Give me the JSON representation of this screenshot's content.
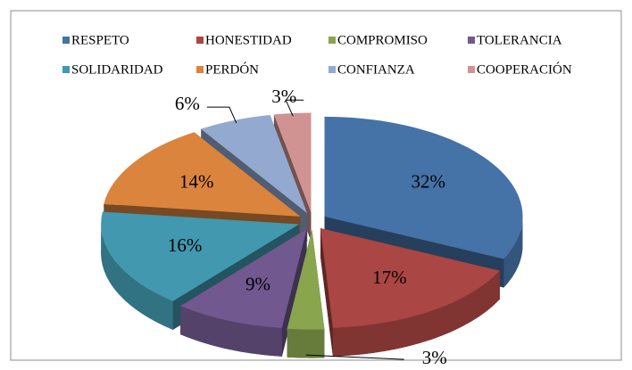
{
  "chart_data": {
    "type": "pie",
    "categories": [
      "RESPETO",
      "HONESTIDAD",
      "COMPROMISO",
      "TOLERANCIA",
      "SOLIDARIDAD",
      "PERDÓN",
      "CONFIANZA",
      "COOPERACIÓN"
    ],
    "values": [
      32,
      17,
      3,
      9,
      16,
      14,
      6,
      3
    ],
    "value_labels": [
      "32%",
      "17%",
      "3%",
      "9%",
      "16%",
      "14%",
      "6%",
      "3%"
    ],
    "colors": [
      "#4572a7",
      "#aa4643",
      "#89a54e",
      "#71588f",
      "#4198af",
      "#db843d",
      "#93a9cf",
      "#d19392"
    ],
    "legend": "top"
  }
}
